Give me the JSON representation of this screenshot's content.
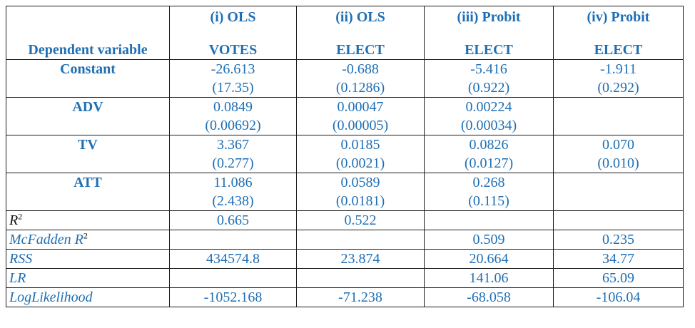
{
  "table": {
    "header": {
      "row_label": "Dependent variable",
      "columns": [
        {
          "name": "(i) OLS",
          "dep": "VOTES"
        },
        {
          "name": "(ii) OLS",
          "dep": "ELECT"
        },
        {
          "name": "(iii) Probit",
          "dep": "ELECT"
        },
        {
          "name": "(iv) Probit",
          "dep": "ELECT"
        }
      ]
    },
    "coef_rows": [
      {
        "label": "Constant",
        "est": [
          "-26.613",
          "-0.688",
          "-5.416",
          "-1.911"
        ],
        "se": [
          "(17.35)",
          "(0.1286)",
          "(0.922)",
          "(0.292)"
        ]
      },
      {
        "label": "ADV",
        "est": [
          "0.0849",
          "0.00047",
          "0.00224",
          ""
        ],
        "se": [
          "(0.00692)",
          "(0.00005)",
          "(0.00034)",
          ""
        ]
      },
      {
        "label": "TV",
        "est": [
          "3.367",
          "0.0185",
          "0.0826",
          "0.070"
        ],
        "se": [
          "(0.277)",
          "(0.0021)",
          "(0.0127)",
          "(0.010)"
        ]
      },
      {
        "label": "ATT",
        "est": [
          "11.086",
          "0.0589",
          "0.268",
          ""
        ],
        "se": [
          "(2.438)",
          "(0.0181)",
          "(0.115)",
          ""
        ]
      }
    ],
    "stat_rows": [
      {
        "label": "R",
        "sup": "2",
        "values": [
          "0.665",
          "0.522",
          "",
          ""
        ]
      },
      {
        "label": "McFadden R",
        "sup": "2",
        "values": [
          "",
          "",
          "0.509",
          "0.235"
        ]
      },
      {
        "label": "RSS",
        "values": [
          "434574.8",
          "23.874",
          "20.664",
          "34.77"
        ]
      },
      {
        "label": "LR",
        "values": [
          "",
          "",
          "141.06",
          "65.09"
        ]
      },
      {
        "label": "LogLikelihood",
        "values": [
          "-1052.168",
          "-71.238",
          "-68.058",
          "-106.04"
        ]
      }
    ]
  }
}
